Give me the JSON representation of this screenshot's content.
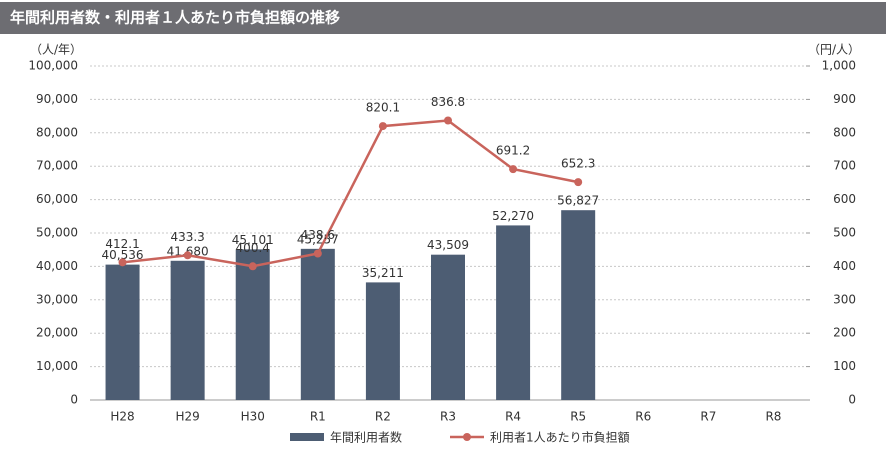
{
  "chart_data": {
    "type": "bar-line",
    "title": "年間利用者数・利用者１人あたり市負担額の推移",
    "y_label": "（人/年）",
    "y2_label": "（円/人）",
    "categories": [
      "H28",
      "H29",
      "H30",
      "R1",
      "R2",
      "R3",
      "R4",
      "R5",
      "R6",
      "R7",
      "R8"
    ],
    "series": [
      {
        "name": "年間利用者数",
        "type": "bar",
        "color": "#4d5d73",
        "values": [
          40536,
          41680,
          45101,
          45257,
          35211,
          43509,
          52270,
          56827,
          null,
          null,
          null
        ],
        "value_labels": [
          "40,536",
          "41,680",
          "45,101",
          "45,257",
          "35,211",
          "43,509",
          "52,270",
          "56,827",
          null,
          null,
          null
        ]
      },
      {
        "name": "利用者1人あたり市負担額",
        "type": "line",
        "axis": "y2",
        "color": "#c9645c",
        "values": [
          412.1,
          433.3,
          400.4,
          438.6,
          820.1,
          836.8,
          691.2,
          652.3,
          null,
          null,
          null
        ]
      }
    ],
    "ylim": [
      0,
      100000
    ],
    "yticks": [
      0,
      {
        "value": 10000,
        "label": "10,000"
      },
      {
        "value": 20000,
        "label": "20,000"
      },
      {
        "value": 30000,
        "label": "30,000"
      },
      {
        "value": 40000,
        "label": "40,000"
      },
      {
        "value": 50000,
        "label": "50,000"
      },
      {
        "value": 60000,
        "label": "60,000"
      },
      {
        "value": 70000,
        "label": "70,000"
      },
      {
        "value": 80000,
        "label": "80,000"
      },
      {
        "value": 90000,
        "label": "90,000"
      },
      {
        "value": 100000,
        "label": "100,000"
      }
    ],
    "y2lim": [
      0,
      1000
    ],
    "y2ticks": [
      0,
      100,
      200,
      300,
      400,
      500,
      600,
      700,
      800,
      900,
      {
        "value": 1000,
        "label": "1,000"
      }
    ],
    "grid": true
  }
}
